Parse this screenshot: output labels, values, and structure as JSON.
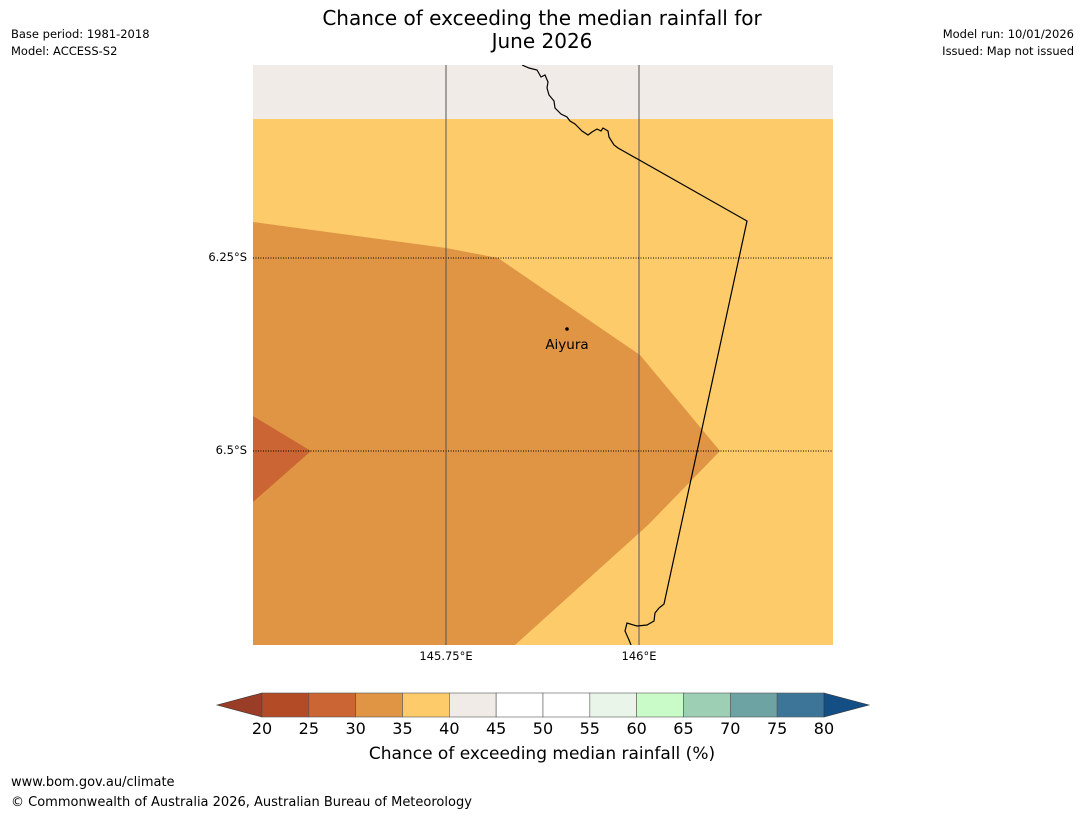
{
  "header": {
    "title_line1": "Chance of exceeding the median rainfall for",
    "title_line2": "June 2026",
    "base_period": "Base period: 1981-2018",
    "model": "Model: ACCESS-S2",
    "model_run": "Model run: 10/01/2026",
    "issued": "Issued: Map not issued"
  },
  "map": {
    "place": "Aiyura",
    "lat_labels": [
      "6.25°S",
      "6.5°S"
    ],
    "lon_labels": [
      "145.75°E",
      "146°E"
    ],
    "colors": {
      "no_data": "#f0ebe6",
      "band_35_40": "#fdcb6a",
      "band_30_35": "#e09545",
      "band_25_30": "#cb6533"
    }
  },
  "colorbar": {
    "title": "Chance of exceeding median rainfall (%)",
    "ticks": [
      "20",
      "25",
      "30",
      "35",
      "40",
      "45",
      "50",
      "55",
      "60",
      "65",
      "70",
      "75",
      "80"
    ],
    "below_color": "#993d26",
    "above_color": "#134e85",
    "segment_colors": [
      "#b34c26",
      "#cb6533",
      "#e09545",
      "#fdcb6a",
      "#f0ebe6",
      "#ffffff",
      "#ffffff",
      "#e8f5e8",
      "#c9fbc9",
      "#9dcfb5",
      "#6da3a3",
      "#3d7599"
    ]
  },
  "footer": {
    "website": "www.bom.gov.au/climate",
    "copyright": "© Commonwealth of Australia 2026, Australian Bureau of Meteorology"
  }
}
